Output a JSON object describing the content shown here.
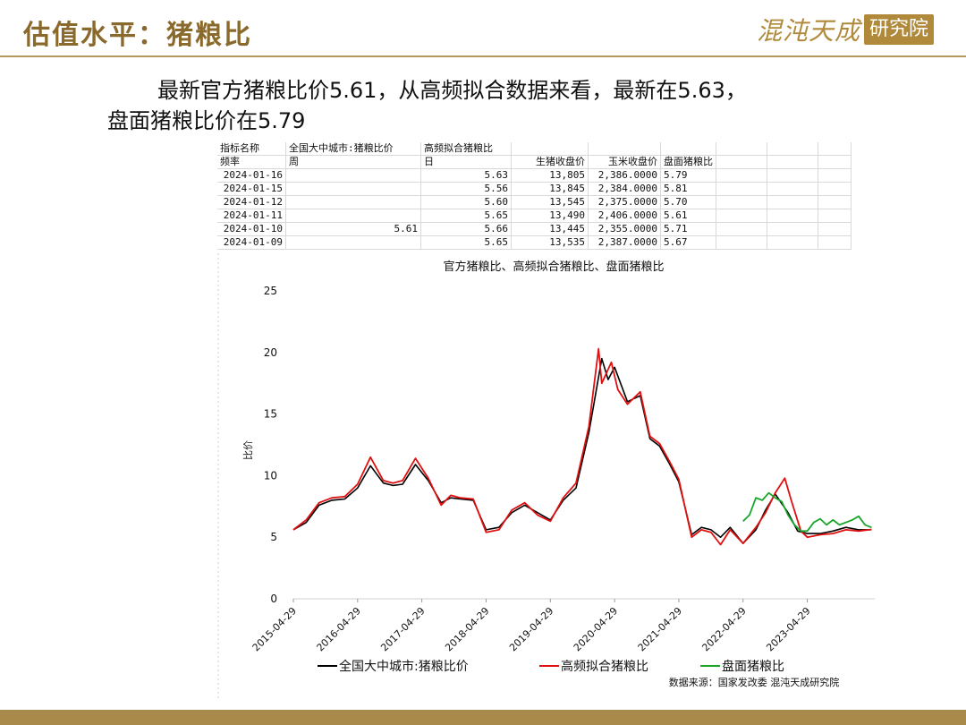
{
  "header": {
    "title": "估值水平：猪粮比",
    "logo_script": "混沌天成",
    "logo_box": "研究院"
  },
  "summary": {
    "line1": "最新官方猪粮比价5.61，从高频拟合数据来看，最新在5.63，",
    "line2": "盘面猪粮比价在5.79"
  },
  "sheet": {
    "header_row1": [
      "指标名称",
      "全国大中城市:猪粮比价",
      "高频拟合猪粮比",
      "",
      "",
      ""
    ],
    "header_row2": [
      "频率",
      "周",
      "日",
      "生猪收盘价",
      "玉米收盘价",
      "盘面猪粮比"
    ],
    "rows": [
      [
        "2024-01-16",
        "",
        "5.63",
        "13,805",
        "2,386.0000",
        "5.79"
      ],
      [
        "2024-01-15",
        "",
        "5.56",
        "13,845",
        "2,384.0000",
        "5.81"
      ],
      [
        "2024-01-12",
        "",
        "5.60",
        "13,545",
        "2,375.0000",
        "5.70"
      ],
      [
        "2024-01-11",
        "",
        "5.65",
        "13,490",
        "2,406.0000",
        "5.61"
      ],
      [
        "2024-01-10",
        "5.61",
        "5.66",
        "13,445",
        "2,355.0000",
        "5.71"
      ],
      [
        "2024-01-09",
        "",
        "5.65",
        "13,535",
        "2,387.0000",
        "5.67"
      ]
    ]
  },
  "chart_data": {
    "type": "line",
    "title": "官方猪粮比、高频拟合猪粮比、盘面猪粮比",
    "xlabel": "",
    "ylabel": "比价",
    "ylim": [
      0,
      25
    ],
    "yticks": [
      0,
      5,
      10,
      15,
      20,
      25
    ],
    "xticks": [
      "2015-04-29",
      "2016-04-29",
      "2017-04-29",
      "2018-04-29",
      "2019-04-29",
      "2020-04-29",
      "2021-04-29",
      "2022-04-29",
      "2023-04-29"
    ],
    "grid": false,
    "legend": "bottom",
    "source": "数据来源：国家发改委 混沌天成研究院",
    "series": [
      {
        "name": "全国大中城市:猪粮比价",
        "color": "#000000",
        "x": [
          2015.0,
          2015.2,
          2015.4,
          2015.6,
          2015.8,
          2016.0,
          2016.2,
          2016.4,
          2016.55,
          2016.7,
          2016.9,
          2017.1,
          2017.3,
          2017.45,
          2017.6,
          2017.8,
          2018.0,
          2018.2,
          2018.4,
          2018.6,
          2018.8,
          2019.0,
          2019.2,
          2019.4,
          2019.6,
          2019.8,
          2019.9,
          2020.0,
          2020.2,
          2020.4,
          2020.55,
          2020.7,
          2020.85,
          2021.0,
          2021.2,
          2021.35,
          2021.5,
          2021.65,
          2021.8,
          2022.0,
          2022.2,
          2022.35,
          2022.5,
          2022.7,
          2022.85,
          2023.0,
          2023.2,
          2023.4,
          2023.6,
          2023.8,
          2024.0
        ],
        "values": [
          5.6,
          6.2,
          7.6,
          8.0,
          8.1,
          9.0,
          10.8,
          9.4,
          9.2,
          9.3,
          10.9,
          9.6,
          7.8,
          8.2,
          8.1,
          8.0,
          5.6,
          5.8,
          7.0,
          7.6,
          7.0,
          6.4,
          8.0,
          9.0,
          13.5,
          19.5,
          17.8,
          18.8,
          16.0,
          16.5,
          13.0,
          12.4,
          11.0,
          9.5,
          5.2,
          5.8,
          5.6,
          5.0,
          5.8,
          4.5,
          5.6,
          7.2,
          8.5,
          7.0,
          5.5,
          5.3,
          5.3,
          5.5,
          5.8,
          5.6,
          5.61
        ]
      },
      {
        "name": "高频拟合猪粮比",
        "color": "#e01010",
        "x": [
          2015.0,
          2015.2,
          2015.4,
          2015.6,
          2015.8,
          2016.0,
          2016.2,
          2016.4,
          2016.55,
          2016.7,
          2016.9,
          2017.1,
          2017.3,
          2017.45,
          2017.6,
          2017.8,
          2018.0,
          2018.2,
          2018.4,
          2018.6,
          2018.8,
          2019.0,
          2019.2,
          2019.4,
          2019.6,
          2019.75,
          2019.8,
          2019.95,
          2020.05,
          2020.2,
          2020.4,
          2020.55,
          2020.7,
          2020.85,
          2021.0,
          2021.2,
          2021.35,
          2021.5,
          2021.65,
          2021.8,
          2022.0,
          2022.2,
          2022.35,
          2022.5,
          2022.65,
          2022.75,
          2022.9,
          2023.0,
          2023.2,
          2023.4,
          2023.6,
          2023.8,
          2024.0
        ],
        "values": [
          5.6,
          6.4,
          7.8,
          8.2,
          8.3,
          9.3,
          11.5,
          9.6,
          9.4,
          9.6,
          11.4,
          9.8,
          7.6,
          8.4,
          8.2,
          8.1,
          5.4,
          5.6,
          7.2,
          7.8,
          6.8,
          6.3,
          8.2,
          9.4,
          14.0,
          20.3,
          17.5,
          19.2,
          17.0,
          15.8,
          16.8,
          13.2,
          12.6,
          11.2,
          9.7,
          5.0,
          5.6,
          5.4,
          4.4,
          5.6,
          4.5,
          5.8,
          7.0,
          8.6,
          9.8,
          8.0,
          5.5,
          5.0,
          5.2,
          5.3,
          5.6,
          5.5,
          5.63
        ]
      },
      {
        "name": "盘面猪粮比",
        "color": "#1aa52b",
        "x": [
          2022.0,
          2022.1,
          2022.2,
          2022.3,
          2022.4,
          2022.5,
          2022.6,
          2022.7,
          2022.8,
          2022.9,
          2023.0,
          2023.1,
          2023.2,
          2023.3,
          2023.4,
          2023.5,
          2023.6,
          2023.7,
          2023.8,
          2023.9,
          2024.0
        ],
        "values": [
          6.3,
          6.8,
          8.2,
          8.0,
          8.6,
          8.2,
          7.9,
          6.8,
          6.0,
          5.5,
          5.5,
          6.2,
          6.5,
          6.0,
          6.4,
          6.0,
          6.2,
          6.4,
          6.7,
          6.0,
          5.79
        ]
      }
    ]
  }
}
